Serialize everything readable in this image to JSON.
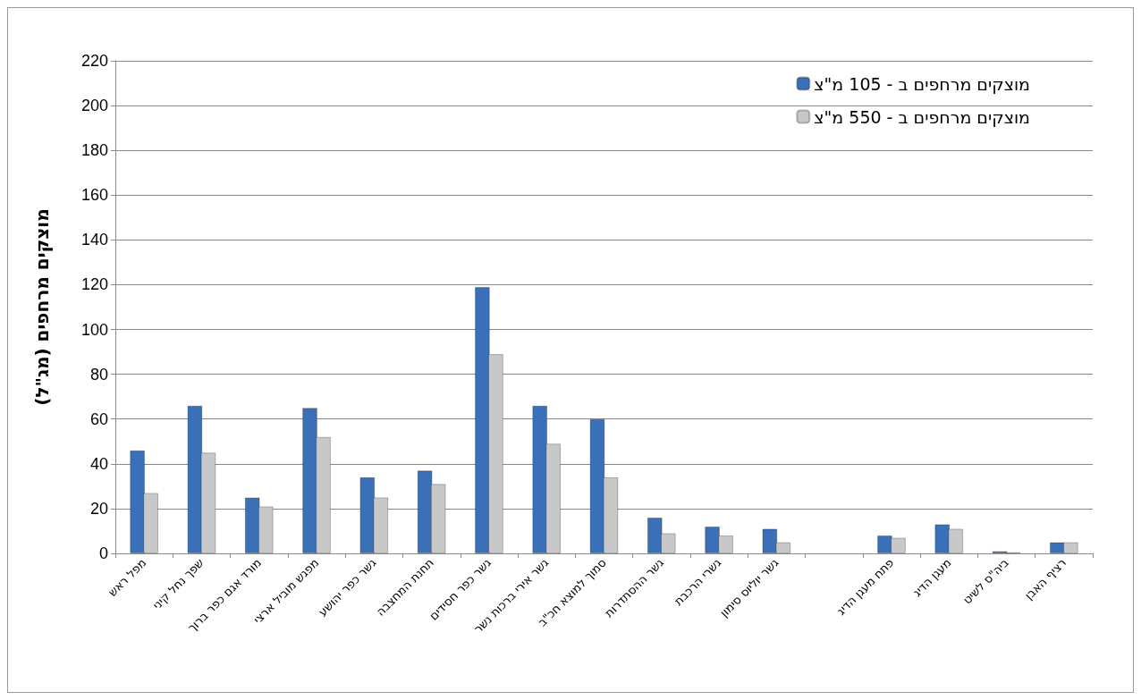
{
  "chart_data": {
    "type": "bar",
    "ylabel": "מוצקים מרחפים (מג\"ל)",
    "categories": [
      "מפל ראש",
      "שפך נחל קיני",
      "מורד אגם כפר ברוך",
      "מפגש מוביל ארצי",
      "גשר כפר יהושע",
      "תחנת המחצבה",
      "גשר כפר חסידים",
      "גשר אירי ברכות נשר",
      "סמוך למוצא חכ\"ב",
      "גשר ההסתדרות",
      "גשרי הרכבת",
      "גשר יוליוס סימון",
      null,
      "פתח מעגן הדיג",
      "מעגן הדיג",
      "ביה\"ס לשיט",
      "רציף האבן"
    ],
    "series": [
      {
        "name": "מוצקים מרחפים ב - 105 מ\"צ",
        "color": "#3a70b8",
        "values": [
          46,
          66,
          25,
          65,
          34,
          37,
          119,
          66,
          60,
          16,
          12,
          11,
          null,
          8,
          13,
          1,
          5
        ]
      },
      {
        "name": "מוצקים מרחפים ב - 550 מ\"צ",
        "color": "#c8c8c8",
        "values": [
          27,
          45,
          21,
          52,
          25,
          31,
          89,
          49,
          34,
          9,
          8,
          5,
          null,
          7,
          11,
          0.5,
          5
        ]
      }
    ],
    "ylim": [
      0,
      220
    ],
    "yticks": [
      0,
      20,
      40,
      60,
      80,
      100,
      120,
      140,
      160,
      180,
      200,
      220
    ],
    "grid": "y",
    "legend": "top right"
  }
}
